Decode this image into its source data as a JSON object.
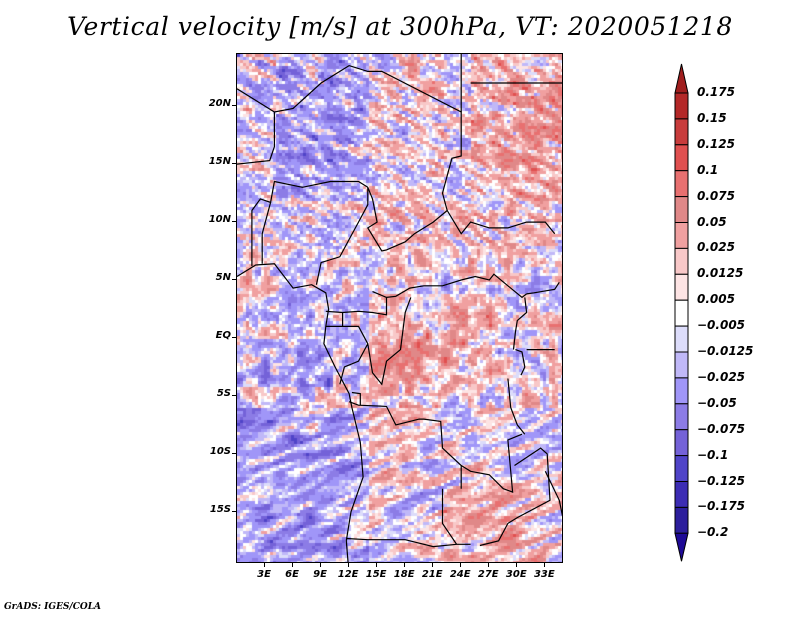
{
  "title": "Vertical velocity [m/s] at 300hPa, VT: 2020051218",
  "credit": "GrADS: IGES/COLA",
  "chart_data": {
    "type": "heatmap",
    "title": "Vertical velocity [m/s] at 300hPa, VT: 2020051218",
    "variable": "Vertical velocity",
    "units": "m/s",
    "level": "300hPa",
    "valid_time": "2020051218",
    "xlabel": "",
    "ylabel": "",
    "lon_range": [
      0,
      35
    ],
    "lat_range": [
      -19.5,
      24.5
    ],
    "xticks": [
      {
        "value": 3,
        "label": "3E"
      },
      {
        "value": 6,
        "label": "6E"
      },
      {
        "value": 9,
        "label": "9E"
      },
      {
        "value": 12,
        "label": "12E"
      },
      {
        "value": 15,
        "label": "15E"
      },
      {
        "value": 18,
        "label": "18E"
      },
      {
        "value": 21,
        "label": "21E"
      },
      {
        "value": 24,
        "label": "24E"
      },
      {
        "value": 27,
        "label": "27E"
      },
      {
        "value": 30,
        "label": "30E"
      },
      {
        "value": 33,
        "label": "33E"
      }
    ],
    "yticks": [
      {
        "value": 20,
        "label": "20N"
      },
      {
        "value": 15,
        "label": "15N"
      },
      {
        "value": 10,
        "label": "10N"
      },
      {
        "value": 5,
        "label": "5N"
      },
      {
        "value": 0,
        "label": "EQ"
      },
      {
        "value": -5,
        "label": "5S"
      },
      {
        "value": -10,
        "label": "10S"
      },
      {
        "value": -15,
        "label": "15S"
      }
    ],
    "grid": false,
    "legend": {
      "type": "colorbar",
      "placement": "right",
      "levels": [
        {
          "value": 0.175,
          "label": "0.175"
        },
        {
          "value": 0.15,
          "label": "0.15"
        },
        {
          "value": 0.125,
          "label": "0.125"
        },
        {
          "value": 0.1,
          "label": "0.1"
        },
        {
          "value": 0.075,
          "label": "0.075"
        },
        {
          "value": 0.05,
          "label": "0.05"
        },
        {
          "value": 0.025,
          "label": "0.025"
        },
        {
          "value": 0.0125,
          "label": "0.0125"
        },
        {
          "value": 0.005,
          "label": "0.005"
        },
        {
          "value": -0.005,
          "label": "−0.005"
        },
        {
          "value": -0.0125,
          "label": "−0.0125"
        },
        {
          "value": -0.025,
          "label": "−0.025"
        },
        {
          "value": -0.05,
          "label": "−0.05"
        },
        {
          "value": -0.075,
          "label": "−0.075"
        },
        {
          "value": -0.1,
          "label": "−0.1"
        },
        {
          "value": -0.125,
          "label": "−0.125"
        },
        {
          "value": -0.175,
          "label": "−0.175"
        },
        {
          "value": -0.2,
          "label": "−0.2"
        }
      ],
      "colors_top_to_bottom": [
        "#a01e1e",
        "#b42828",
        "#c83c3c",
        "#e05050",
        "#e87070",
        "#e08888",
        "#f0a0a0",
        "#f8c8c8",
        "#fde4e4",
        "#ffffff",
        "#dcdcfa",
        "#c0b8f8",
        "#a096f8",
        "#8c7ce6",
        "#7462d8",
        "#5044c8",
        "#3c2cb4",
        "#2c1e9c",
        "#1e0a96"
      ],
      "extend": "both"
    },
    "field_description": "Gridded vertical velocity over Central/West Africa and adjacent Atlantic; mixed positive (red) and negative (blue) small-scale structures, strongest positive values over northern Chad/Sudan and southeast (Zambia/Malawi region)."
  }
}
